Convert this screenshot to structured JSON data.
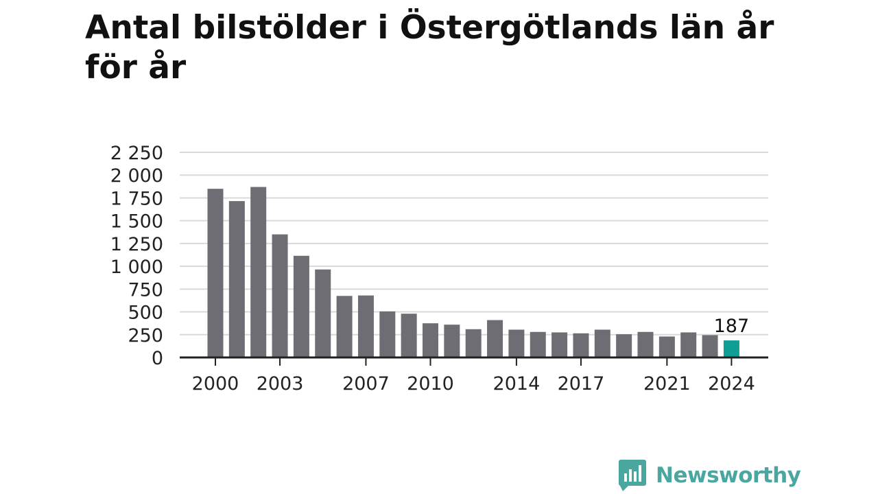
{
  "title": "Antal bilstölder i Östergötlands län år för år",
  "brand": {
    "name": "Newsworthy",
    "icon": "newsworthy-logo-icon",
    "color": "#4aa79f"
  },
  "colors": {
    "bar": "#6e6d73",
    "highlight": "#0e9e93",
    "grid": "#d9d9d9",
    "axis": "#222222"
  },
  "chart_data": {
    "type": "bar",
    "title": "Antal bilstölder i Östergötlands län år för år",
    "xlabel": "",
    "ylabel": "",
    "ylim": [
      0,
      2250
    ],
    "yticks": [
      0,
      250,
      500,
      750,
      1000,
      1250,
      1500,
      1750,
      2000,
      2250
    ],
    "ytick_labels": [
      "0",
      "250",
      "500",
      "750",
      "1 000",
      "1 250",
      "1 500",
      "1 750",
      "2 000",
      "2 250"
    ],
    "xtick_labels": [
      "2000",
      "2003",
      "2007",
      "2010",
      "2014",
      "2017",
      "2021",
      "2024"
    ],
    "grid": true,
    "categories": [
      "2000",
      "2001",
      "2002",
      "2003",
      "2004",
      "2005",
      "2006",
      "2007",
      "2008",
      "2009",
      "2010",
      "2011",
      "2012",
      "2013",
      "2014",
      "2015",
      "2016",
      "2017",
      "2018",
      "2019",
      "2020",
      "2021",
      "2022",
      "2023",
      "2024"
    ],
    "values": [
      1850,
      1715,
      1870,
      1350,
      1115,
      965,
      675,
      680,
      505,
      480,
      375,
      360,
      310,
      410,
      305,
      280,
      275,
      265,
      305,
      255,
      280,
      230,
      275,
      245,
      187
    ],
    "highlight": {
      "category": "2024",
      "label": "187"
    }
  }
}
